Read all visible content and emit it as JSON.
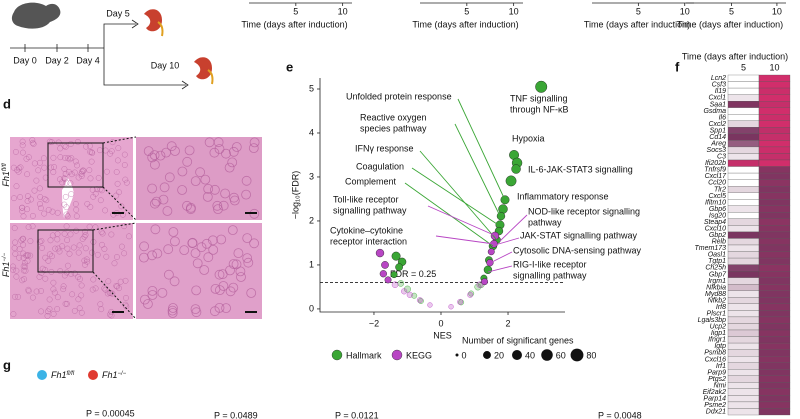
{
  "panel_labels": [
    "d",
    "e",
    "f",
    "g"
  ],
  "schematic": {
    "days": [
      "Day 0",
      "Day 2",
      "Day 4"
    ],
    "branches": [
      "Day 5",
      "Day 10"
    ]
  },
  "histology": {
    "genotypes": [
      {
        "gene": "Fh1",
        "sup": "fl/fl"
      },
      {
        "gene": "Fh1",
        "sup": "−/−"
      }
    ]
  },
  "panel_g": {
    "legend": [
      {
        "gene": "Fh1",
        "sup": "fl/fl",
        "color": "#3bb3e6"
      },
      {
        "gene": "Fh1",
        "sup": "−/−",
        "color": "#e03a30"
      }
    ],
    "p_values": [
      "P = 0.00045",
      "P = 0.0489",
      "P = 0.0121",
      "P = 0.0048"
    ]
  },
  "chart_data": [
    {
      "type": "line",
      "xlabel": "Time (days after induction)",
      "xlim": [
        0,
        11
      ],
      "xticks": [
        5,
        10
      ]
    },
    {
      "type": "line",
      "xlabel": "Time (days after induction)",
      "xlim": [
        0,
        11
      ],
      "xticks": [
        5,
        10
      ]
    },
    {
      "type": "line",
      "xlabel": "Time (days after induction)",
      "xlim": [
        0,
        11
      ],
      "xticks": [
        5,
        10
      ]
    },
    {
      "type": "line",
      "xlabel": "Time (days after induction)",
      "xlim": [
        0,
        11
      ],
      "xticks": [
        5,
        10
      ]
    },
    {
      "type": "scatter",
      "xlabel": "NES",
      "ylabel": "−log₁₀(FDR)",
      "xlim": [
        -3.61,
        3.7
      ],
      "ylim": [
        -0.07,
        5.25
      ],
      "xticks": [
        {
          "value": -2,
          "label": "−2"
        },
        0,
        2
      ],
      "yticks": [
        0,
        1,
        2,
        3,
        4,
        5
      ],
      "threshold": {
        "value": 0.602,
        "label": "FDR = 0.25"
      },
      "series": [
        {
          "name": "Hallmark",
          "color": "#3aa635",
          "x": [
            2.99,
            2.18,
            2.27,
            2.24,
            2.09,
            1.91,
            1.85,
            1.79,
            1.76,
            1.73,
            1.67,
            1.55,
            1.43,
            1.4,
            1.28,
            -1.34,
            -1.16,
            -1.25,
            -1.4,
            1.1,
            0.9,
            -1.0,
            -0.8,
            -0.6,
            0.6,
            1.2,
            -1.2
          ],
          "values": [
            5.05,
            3.5,
            3.32,
            3.18,
            2.91,
            2.48,
            2.27,
            2.11,
            1.91,
            1.77,
            1.57,
            1.43,
            1.11,
            0.89,
            0.7,
            1.2,
            1.07,
            0.95,
            0.78,
            0.5,
            0.35,
            0.45,
            0.3,
            0.18,
            0.15,
            0.55,
            0.58
          ],
          "sizes": [
            60,
            35,
            40,
            30,
            45,
            25,
            30,
            20,
            25,
            20,
            15,
            20,
            15,
            20,
            10,
            25,
            20,
            15,
            10,
            10,
            5,
            10,
            5,
            5,
            5,
            8,
            8
          ]
        },
        {
          "name": "KEGG",
          "color": "#b846c4",
          "x": [
            1.61,
            1.58,
            1.46,
            1.5,
            -1.82,
            -1.67,
            -1.72,
            1.16,
            0.87,
            0.57,
            -0.63,
            -0.33,
            -0.93,
            -1.37,
            -1.58,
            1.3,
            0.3,
            -1.1
          ],
          "values": [
            1.66,
            1.48,
            1.05,
            1.3,
            1.27,
            1.0,
            0.8,
            0.55,
            0.32,
            0.16,
            0.2,
            0.09,
            0.32,
            0.55,
            0.66,
            0.62,
            0.05,
            0.4
          ],
          "sizes": [
            20,
            15,
            12,
            10,
            20,
            15,
            12,
            8,
            5,
            5,
            5,
            3,
            6,
            8,
            10,
            10,
            3,
            6
          ]
        }
      ],
      "size_legend": {
        "title": "Number of significant genes",
        "values": [
          0,
          20,
          40,
          60,
          80
        ]
      },
      "annotations": [
        [
          "Unfolded protein response"
        ],
        [
          "TNF signalling",
          "through NF-κB"
        ],
        [
          "Reactive oxygen",
          "species pathway"
        ],
        [
          "Hypoxia"
        ],
        [
          "IFNγ response"
        ],
        [
          "IL-6-JAK-STAT3 signalling"
        ],
        [
          "Coagulation"
        ],
        [
          "Complement"
        ],
        [
          "Inflammatory response"
        ],
        [
          "Toll-like receptor",
          "signalling pathway"
        ],
        [
          "NOD-like receptor signalling",
          "pathway"
        ],
        [
          "JAK-STAT signalling pathway"
        ],
        [
          "Cytokine–cytokine",
          "receptor interaction"
        ],
        [
          "Cytosolic DNA-sensing pathway"
        ],
        [
          "RIG-I-like receptor",
          "signalling pathway"
        ]
      ]
    },
    {
      "type": "heatmap",
      "title": "Time (days after induction)",
      "categories": [
        "Lcn2",
        "Csf3",
        "Il19",
        "Cxcl1",
        "Saa1",
        "Gsdma",
        "Il6",
        "Cxcl2",
        "Spp1",
        "Cd14",
        "Areg",
        "Socs3",
        "C3",
        "Ifi202b",
        "Tnfrsf9",
        "Cxcl17",
        "Ccl20",
        "Tlr2",
        "Cxcl5",
        "Ifitm10",
        "Gbp6",
        "Isg20",
        "Steap4",
        "Cxcl10",
        "Gbp2",
        "Relb",
        "Tmem173",
        "Oasl1",
        "Tgtp1",
        "Ch25h",
        "Gbp7",
        "Irgm1",
        "Nfkbia",
        "Myd88",
        "Nfkb2",
        "Irf8",
        "Plscr1",
        "Lgals3bp",
        "Ucp2",
        "Iigp1",
        "Ifngr1",
        "Igtp",
        "Psmb8",
        "Cxcl16",
        "Irf1",
        "Parp9",
        "Ptgs2",
        "Nmi",
        "Eif2ak2",
        "Parp14",
        "Psme2",
        "Ddx21"
      ],
      "colors": [
        "#ffffff",
        "#7a3560",
        "#d12e6b"
      ],
      "vlim": [
        0,
        3
      ],
      "series": [
        {
          "name": "5",
          "values": [
            0,
            0,
            0,
            0.2,
            1.6,
            0,
            0,
            0.3,
            1.4,
            1.5,
            1.2,
            0.3,
            0.2,
            2.8,
            0,
            0,
            0,
            0.3,
            0,
            0,
            0.2,
            0,
            0.3,
            0.2,
            1.5,
            0.3,
            0.2,
            0.3,
            0.3,
            1.4,
            1.5,
            0.3,
            0.5,
            0.2,
            0.3,
            0.2,
            0.2,
            0.3,
            0.3,
            0.4,
            0.3,
            0.2,
            0.3,
            0.2,
            0.3,
            0.2,
            0.3,
            0.2,
            0.2,
            0.2,
            0.2,
            0.2
          ]
        },
        {
          "name": "10",
          "values": [
            3,
            3,
            2.9,
            3,
            2.8,
            3,
            2.9,
            3,
            2.7,
            2.8,
            3,
            2.9,
            2.8,
            3,
            1.7,
            1.6,
            1.8,
            1.6,
            1.7,
            1.6,
            1.7,
            1.6,
            1.8,
            1.7,
            1.6,
            1.7,
            1.6,
            1.7,
            1.6,
            1.8,
            1.7,
            1.6,
            1.7,
            1.6,
            1.6,
            1.7,
            1.6,
            1.7,
            1.6,
            1.7,
            1.6,
            1.7,
            1.6,
            1.7,
            1.6,
            1.6,
            1.7,
            1.6,
            1.7,
            1.6,
            1.7,
            1.6
          ]
        }
      ]
    }
  ]
}
